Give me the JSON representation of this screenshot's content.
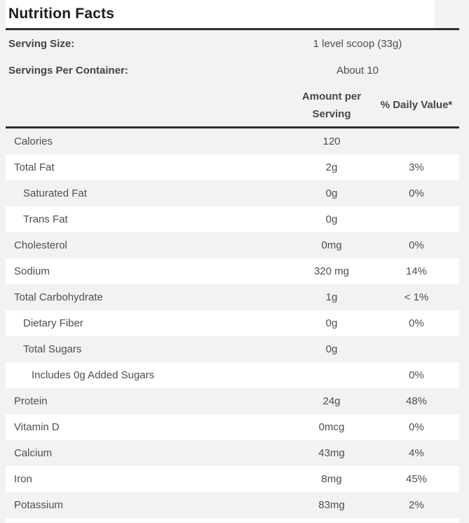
{
  "title": "Nutrition Facts",
  "serving": [
    {
      "label": "Serving Size:",
      "value": "1 level scoop (33g)"
    },
    {
      "label": "Servings Per Container:",
      "value": "About 10"
    }
  ],
  "header": {
    "amount": "Amount per Serving",
    "daily_value": "% Daily Value*"
  },
  "rows": [
    {
      "label": "Calories",
      "amount": "120",
      "dv": "",
      "indent": 0
    },
    {
      "label": "Total Fat",
      "amount": "2g",
      "dv": "3%",
      "indent": 0
    },
    {
      "label": "Saturated Fat",
      "amount": "0g",
      "dv": "0%",
      "indent": 1
    },
    {
      "label": "Trans Fat",
      "amount": "0g",
      "dv": "",
      "indent": 1
    },
    {
      "label": "Cholesterol",
      "amount": "0mg",
      "dv": "0%",
      "indent": 0
    },
    {
      "label": "Sodium",
      "amount": "320 mg",
      "dv": "14%",
      "indent": 0
    },
    {
      "label": "Total Carbohydrate",
      "amount": "1g",
      "dv": "< 1%",
      "indent": 0
    },
    {
      "label": "Dietary Fiber",
      "amount": "0g",
      "dv": "0%",
      "indent": 1
    },
    {
      "label": "Total Sugars",
      "amount": "0g",
      "dv": "",
      "indent": 1
    },
    {
      "label": "Includes 0g Added Sugars",
      "amount": "",
      "dv": "0%",
      "indent": 2
    },
    {
      "label": "Protein",
      "amount": "24g",
      "dv": "48%",
      "indent": 0
    },
    {
      "label": "Vitamin D",
      "amount": "0mcg",
      "dv": "0%",
      "indent": 0
    },
    {
      "label": "Calcium",
      "amount": "43mg",
      "dv": "4%",
      "indent": 0
    },
    {
      "label": "Iron",
      "amount": "8mg",
      "dv": "45%",
      "indent": 0
    },
    {
      "label": "Potassium",
      "amount": "83mg",
      "dv": "2%",
      "indent": 0
    }
  ],
  "colors": {
    "background": "#f2f2f2",
    "row_white": "#ffffff",
    "rule": "#2e2e2e",
    "text": "#4d4e52",
    "title": "#1d1d1d"
  }
}
